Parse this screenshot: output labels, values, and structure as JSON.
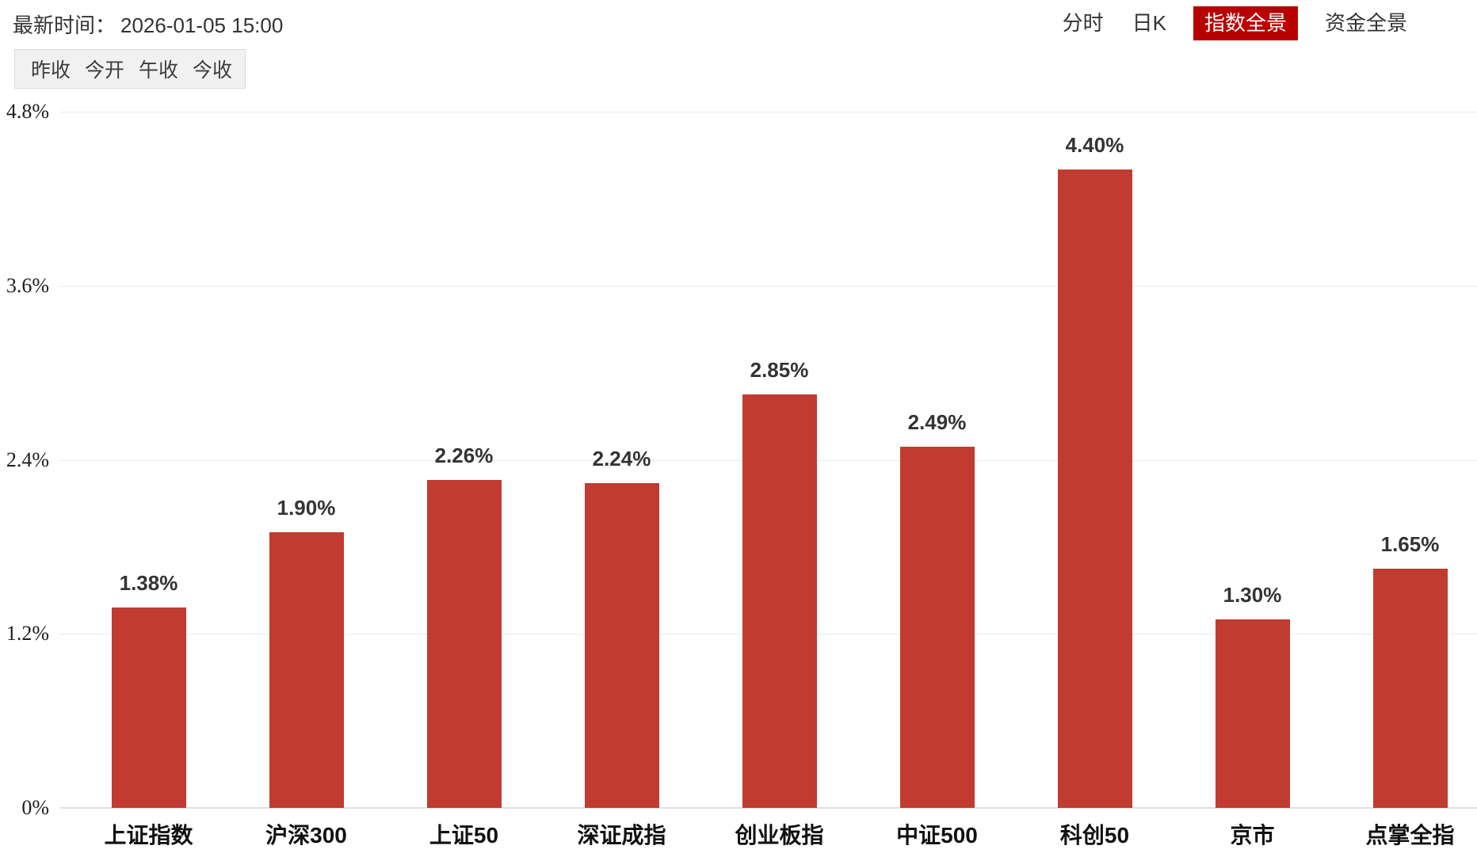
{
  "header": {
    "time_label": "最新时间：",
    "time_value": "2026-01-05 15:00",
    "tabs": [
      {
        "label": "分时",
        "active": false
      },
      {
        "label": "日K",
        "active": false
      },
      {
        "label": "指数全景",
        "active": true
      },
      {
        "label": "资金全景",
        "active": false
      }
    ],
    "active_tab_color": "#b80000"
  },
  "stat_buttons": {
    "items": [
      "昨收",
      "今开",
      "午收",
      "今收"
    ]
  },
  "chart_data": {
    "type": "bar",
    "categories": [
      "上证指数",
      "沪深300",
      "上证50",
      "深证成指",
      "创业板指",
      "中证500",
      "科创50",
      "京市",
      "点掌全指"
    ],
    "values": [
      1.38,
      1.9,
      2.26,
      2.24,
      2.85,
      2.49,
      4.4,
      1.3,
      1.65
    ],
    "value_labels": [
      "1.38%",
      "1.90%",
      "2.26%",
      "2.24%",
      "2.85%",
      "2.49%",
      "4.40%",
      "1.30%",
      "1.65%"
    ],
    "title": "",
    "xlabel": "",
    "ylabel": "",
    "ylim": [
      0,
      4.8
    ],
    "y_ticks": [
      {
        "value": 0.0,
        "label": "0%"
      },
      {
        "value": 1.2,
        "label": "1.2%"
      },
      {
        "value": 2.4,
        "label": "2.4%"
      },
      {
        "value": 3.6,
        "label": "3.6%"
      },
      {
        "value": 4.8,
        "label": "4.8%"
      }
    ],
    "grid": true,
    "legend_position": "none",
    "bar_color": "#c23b31"
  }
}
